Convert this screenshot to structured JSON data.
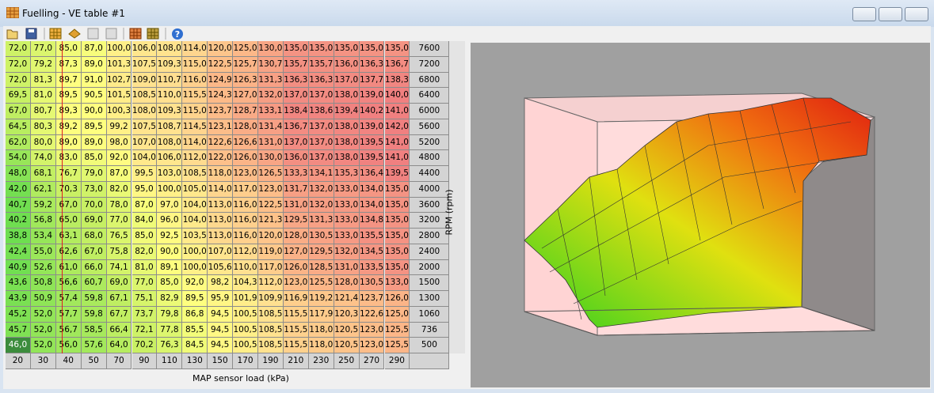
{
  "window": {
    "title": "Fuelling - VE table #1"
  },
  "axis": {
    "x_label": "MAP sensor load (kPa)",
    "y_label": "RPM (rpm)"
  },
  "table": {
    "rpm": [
      7600,
      7200,
      6800,
      6400,
      6000,
      5600,
      5200,
      4800,
      4400,
      4000,
      3600,
      3200,
      2800,
      2400,
      2000,
      1500,
      1300,
      1060,
      736,
      500
    ],
    "map": [
      20,
      30,
      40,
      50,
      70,
      90,
      110,
      130,
      150,
      170,
      190,
      210,
      230,
      250,
      270,
      290
    ],
    "rows": [
      [
        "72,0",
        "77,0",
        "85,0",
        "87,0",
        "100,0",
        "106,0",
        "108,0",
        "114,0",
        "120,0",
        "125,0",
        "130,0",
        "135,0",
        "135,0",
        "135,0",
        "135,0",
        "135,0"
      ],
      [
        "72,0",
        "79,2",
        "87,3",
        "89,0",
        "101,3",
        "107,5",
        "109,3",
        "115,0",
        "122,5",
        "125,7",
        "130,7",
        "135,7",
        "135,7",
        "136,0",
        "136,3",
        "136,7"
      ],
      [
        "72,0",
        "81,3",
        "89,7",
        "91,0",
        "102,7",
        "109,0",
        "110,7",
        "116,0",
        "124,9",
        "126,3",
        "131,3",
        "136,3",
        "136,3",
        "137,0",
        "137,7",
        "138,3"
      ],
      [
        "69,5",
        "81,0",
        "89,5",
        "90,5",
        "101,5",
        "108,5",
        "110,0",
        "115,5",
        "124,3",
        "127,0",
        "132,0",
        "137,0",
        "137,0",
        "138,0",
        "139,0",
        "140,0"
      ],
      [
        "67,0",
        "80,7",
        "89,3",
        "90,0",
        "100,3",
        "108,0",
        "109,3",
        "115,0",
        "123,7",
        "128,7",
        "133,1",
        "138,4",
        "138,6",
        "139,4",
        "140,2",
        "141,0"
      ],
      [
        "64,5",
        "80,3",
        "89,2",
        "89,5",
        "99,2",
        "107,5",
        "108,7",
        "114,5",
        "123,1",
        "128,0",
        "131,4",
        "136,7",
        "137,0",
        "138,0",
        "139,0",
        "142,0"
      ],
      [
        "62,0",
        "80,0",
        "89,0",
        "89,0",
        "98,0",
        "107,0",
        "108,0",
        "114,0",
        "122,6",
        "126,6",
        "131,0",
        "137,0",
        "137,0",
        "138,0",
        "139,5",
        "141,0"
      ],
      [
        "54,0",
        "74,0",
        "83,0",
        "85,0",
        "92,0",
        "104,0",
        "106,0",
        "112,0",
        "122,0",
        "126,0",
        "130,0",
        "136,0",
        "137,0",
        "138,0",
        "139,5",
        "141,0"
      ],
      [
        "48,0",
        "68,1",
        "76,7",
        "79,0",
        "87,0",
        "99,5",
        "103,0",
        "108,5",
        "118,0",
        "123,0",
        "126,5",
        "133,3",
        "134,1",
        "135,3",
        "136,4",
        "139,5"
      ],
      [
        "42,0",
        "62,1",
        "70,3",
        "73,0",
        "82,0",
        "95,0",
        "100,0",
        "105,0",
        "114,0",
        "117,0",
        "123,0",
        "131,7",
        "132,0",
        "133,0",
        "134,0",
        "135,0"
      ],
      [
        "40,7",
        "59,2",
        "67,0",
        "70,0",
        "78,0",
        "87,0",
        "97,0",
        "104,0",
        "113,0",
        "116,0",
        "122,5",
        "131,0",
        "132,0",
        "133,0",
        "134,0",
        "135,0"
      ],
      [
        "40,2",
        "56,8",
        "65,0",
        "69,0",
        "77,0",
        "84,0",
        "96,0",
        "104,0",
        "113,0",
        "116,0",
        "121,3",
        "129,5",
        "131,3",
        "133,0",
        "134,8",
        "135,0"
      ],
      [
        "38,8",
        "53,4",
        "63,1",
        "68,0",
        "76,5",
        "85,0",
        "92,5",
        "103,5",
        "113,0",
        "116,0",
        "120,0",
        "128,0",
        "130,5",
        "133,0",
        "135,5",
        "135,0"
      ],
      [
        "42,4",
        "55,0",
        "62,6",
        "67,0",
        "75,8",
        "82,0",
        "90,0",
        "100,0",
        "107,0",
        "112,0",
        "119,0",
        "127,0",
        "129,5",
        "132,0",
        "134,5",
        "135,0"
      ],
      [
        "40,9",
        "52,6",
        "61,0",
        "66,0",
        "74,1",
        "81,0",
        "89,1",
        "100,0",
        "105,6",
        "110,0",
        "117,0",
        "126,0",
        "128,5",
        "131,0",
        "133,5",
        "135,0"
      ],
      [
        "43,6",
        "50,8",
        "56,6",
        "60,7",
        "69,0",
        "77,0",
        "85,0",
        "92,0",
        "98,2",
        "104,3",
        "112,0",
        "123,0",
        "125,5",
        "128,0",
        "130,5",
        "133,0"
      ],
      [
        "43,9",
        "50,9",
        "57,4",
        "59,8",
        "67,1",
        "75,1",
        "82,9",
        "89,5",
        "95,9",
        "101,9",
        "109,9",
        "116,9",
        "119,2",
        "121,4",
        "123,7",
        "126,0"
      ],
      [
        "45,2",
        "52,0",
        "57,7",
        "59,8",
        "67,7",
        "73,7",
        "79,8",
        "86,8",
        "94,5",
        "100,5",
        "108,5",
        "115,5",
        "117,9",
        "120,3",
        "122,6",
        "125,0"
      ],
      [
        "45,7",
        "52,0",
        "56,7",
        "58,5",
        "66,4",
        "72,1",
        "77,8",
        "85,5",
        "94,5",
        "100,5",
        "108,5",
        "115,5",
        "118,0",
        "120,5",
        "123,0",
        "125,5"
      ],
      [
        "46,0",
        "52,0",
        "56,0",
        "57,6",
        "64,0",
        "70,2",
        "76,3",
        "84,5",
        "94,5",
        "100,5",
        "108,5",
        "115,5",
        "118,0",
        "120,5",
        "123,0",
        "125,5"
      ]
    ]
  }
}
